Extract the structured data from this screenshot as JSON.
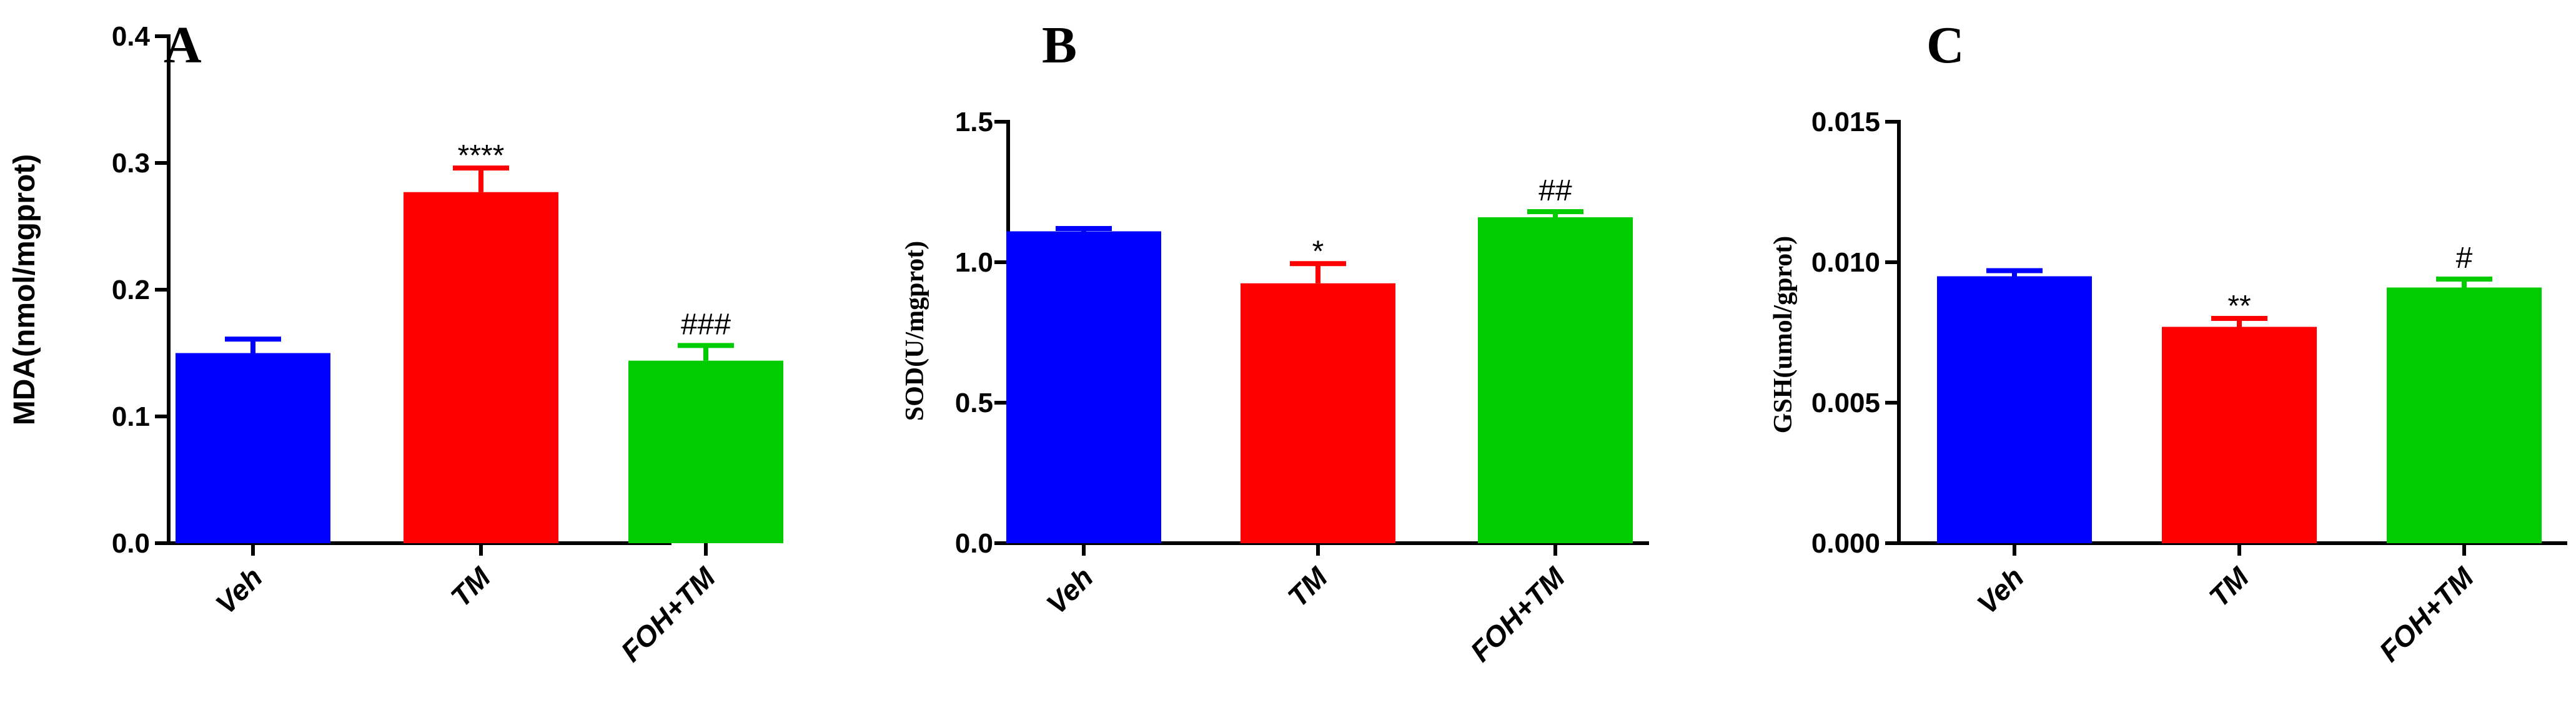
{
  "chart_data": [
    {
      "type": "bar",
      "panel": "A",
      "ylabel": "MDA(nmol/mgprot)",
      "ylim": [
        0,
        0.4
      ],
      "yticks": [
        "0.0",
        "0.1",
        "0.2",
        "0.3",
        "0.4"
      ],
      "ytick_values": [
        0,
        0.1,
        0.2,
        0.3,
        0.4
      ],
      "categories": [
        "Veh",
        "TM",
        "FOH+TM"
      ],
      "values": [
        0.15,
        0.277,
        0.144
      ],
      "errors": [
        0.011,
        0.019,
        0.012
      ],
      "significance": [
        "",
        "****",
        "###"
      ],
      "colors": [
        "#0000ff",
        "#ff0000",
        "#00cc00"
      ]
    },
    {
      "type": "bar",
      "panel": "B",
      "ylabel": "SOD(U/mgprot)",
      "ylim": [
        0,
        1.5
      ],
      "yticks": [
        "0.0",
        "0.5",
        "1.0",
        "1.5"
      ],
      "ytick_values": [
        0,
        0.5,
        1.0,
        1.5
      ],
      "categories": [
        "Veh",
        "TM",
        "FOH+TM"
      ],
      "values": [
        1.11,
        0.925,
        1.16
      ],
      "errors": [
        0.01,
        0.07,
        0.02
      ],
      "significance": [
        "",
        "*",
        "##"
      ],
      "colors": [
        "#0000ff",
        "#ff0000",
        "#00cc00"
      ]
    },
    {
      "type": "bar",
      "panel": "C",
      "ylabel": "GSH(umol/gprot)",
      "ylim": [
        0,
        0.015
      ],
      "yticks": [
        "0.000",
        "0.005",
        "0.010",
        "0.015"
      ],
      "ytick_values": [
        0,
        0.005,
        0.01,
        0.015
      ],
      "categories": [
        "Veh",
        "TM",
        "FOH+TM"
      ],
      "values": [
        0.0095,
        0.0077,
        0.0091
      ],
      "errors": [
        0.0002,
        0.0003,
        0.0003
      ],
      "significance": [
        "",
        "**",
        "#"
      ],
      "colors": [
        "#0000ff",
        "#ff0000",
        "#00cc00"
      ]
    }
  ]
}
